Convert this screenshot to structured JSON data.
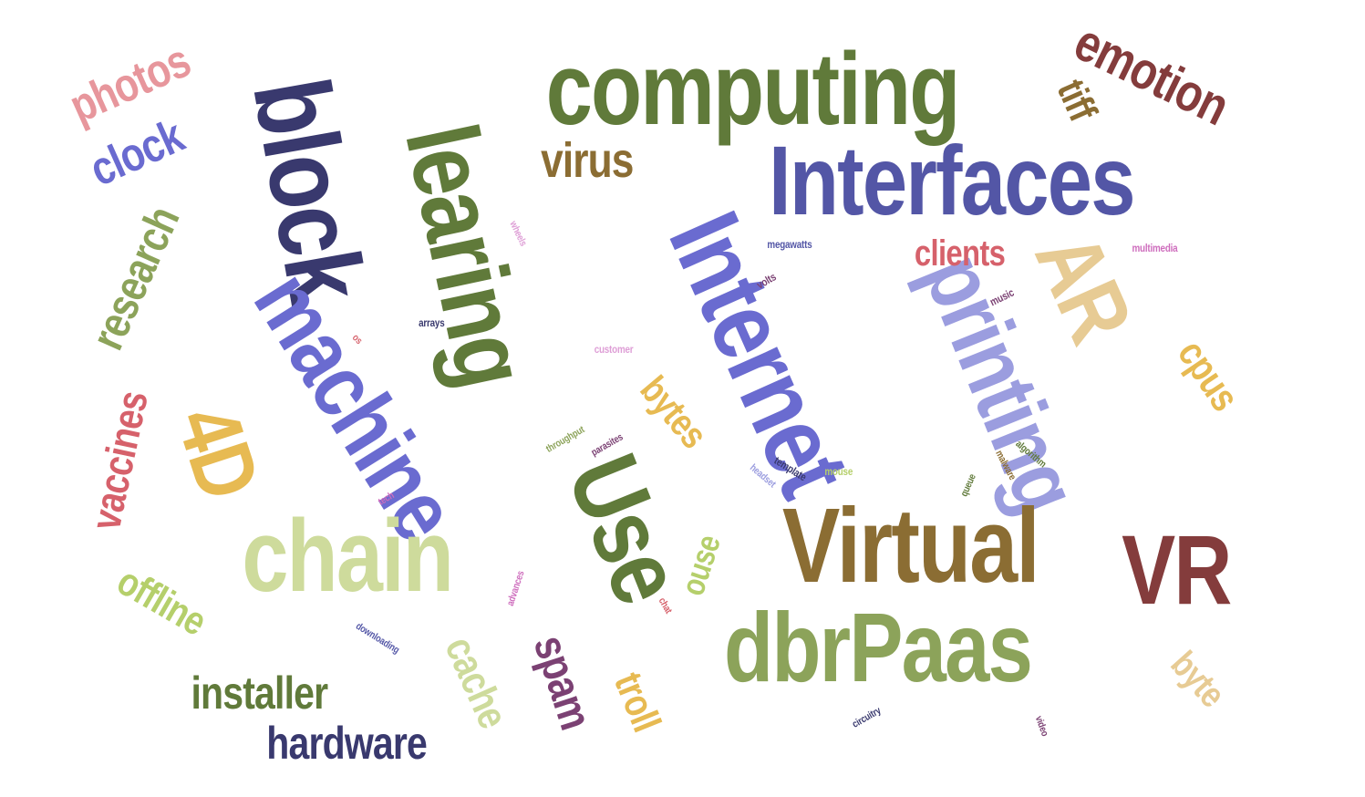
{
  "colors": {
    "olive": "#607a3a",
    "navy": "#39396e",
    "indigo": "#5356a6",
    "periwinkle": "#6a6bd0",
    "lavender": "#9b9ddf",
    "brown": "#8b6d33",
    "maroon": "#843c3c",
    "sage": "#8ca35a",
    "pale_green": "#cedb9c",
    "lime": "#b5cf6b",
    "gold": "#e7ba52",
    "sand": "#e7cb94",
    "rose": "#e7969c",
    "red": "#d6616b",
    "plum": "#7b4173",
    "orchid": "#ce6dbd",
    "pink": "#de9ed6"
  },
  "words": [
    {
      "text": "computing",
      "color": "olive"
    },
    {
      "text": "Interfaces",
      "color": "indigo"
    },
    {
      "text": "block",
      "color": "navy"
    },
    {
      "text": "learing",
      "color": "olive"
    },
    {
      "text": "Internet",
      "color": "periwinkle"
    },
    {
      "text": "machine",
      "color": "periwinkle"
    },
    {
      "text": "printing",
      "color": "lavender"
    },
    {
      "text": "Virtual",
      "color": "brown"
    },
    {
      "text": "dbrPaas",
      "color": "sage"
    },
    {
      "text": "chain",
      "color": "pale_green"
    },
    {
      "text": "Use",
      "color": "olive"
    },
    {
      "text": "VR",
      "color": "maroon"
    },
    {
      "text": "AR",
      "color": "sand"
    },
    {
      "text": "4D",
      "color": "gold"
    },
    {
      "text": "emotion",
      "color": "maroon"
    },
    {
      "text": "photos",
      "color": "rose"
    },
    {
      "text": "clock",
      "color": "periwinkle"
    },
    {
      "text": "research",
      "color": "sage"
    },
    {
      "text": "vaccines",
      "color": "red"
    },
    {
      "text": "virus",
      "color": "brown"
    },
    {
      "text": "tiff",
      "color": "brown"
    },
    {
      "text": "clients",
      "color": "red"
    },
    {
      "text": "cpus",
      "color": "gold"
    },
    {
      "text": "bytes",
      "color": "gold"
    },
    {
      "text": "offline",
      "color": "lime"
    },
    {
      "text": "installer",
      "color": "olive"
    },
    {
      "text": "hardware",
      "color": "navy"
    },
    {
      "text": "cache",
      "color": "pale_green"
    },
    {
      "text": "spam",
      "color": "plum"
    },
    {
      "text": "troll",
      "color": "gold"
    },
    {
      "text": "ouse",
      "color": "lime"
    },
    {
      "text": "byte",
      "color": "sand"
    },
    {
      "text": "wheels",
      "color": "pink"
    },
    {
      "text": "megawatts",
      "color": "indigo"
    },
    {
      "text": "multimedia",
      "color": "orchid"
    },
    {
      "text": "volts",
      "color": "plum"
    },
    {
      "text": "music",
      "color": "plum"
    },
    {
      "text": "os",
      "color": "red"
    },
    {
      "text": "arrays",
      "color": "navy"
    },
    {
      "text": "customer",
      "color": "pink"
    },
    {
      "text": "throughput",
      "color": "sage"
    },
    {
      "text": "parasites",
      "color": "plum"
    },
    {
      "text": "template",
      "color": "navy"
    },
    {
      "text": "headset",
      "color": "lavender"
    },
    {
      "text": "mouse",
      "color": "lime"
    },
    {
      "text": "queue",
      "color": "olive"
    },
    {
      "text": "algorithm",
      "color": "olive"
    },
    {
      "text": "malware",
      "color": "brown"
    },
    {
      "text": "tech",
      "color": "orchid"
    },
    {
      "text": "advances",
      "color": "orchid"
    },
    {
      "text": "chat",
      "color": "red"
    },
    {
      "text": "downloading",
      "color": "indigo"
    },
    {
      "text": "circuitry",
      "color": "navy"
    },
    {
      "text": "video",
      "color": "plum"
    }
  ]
}
